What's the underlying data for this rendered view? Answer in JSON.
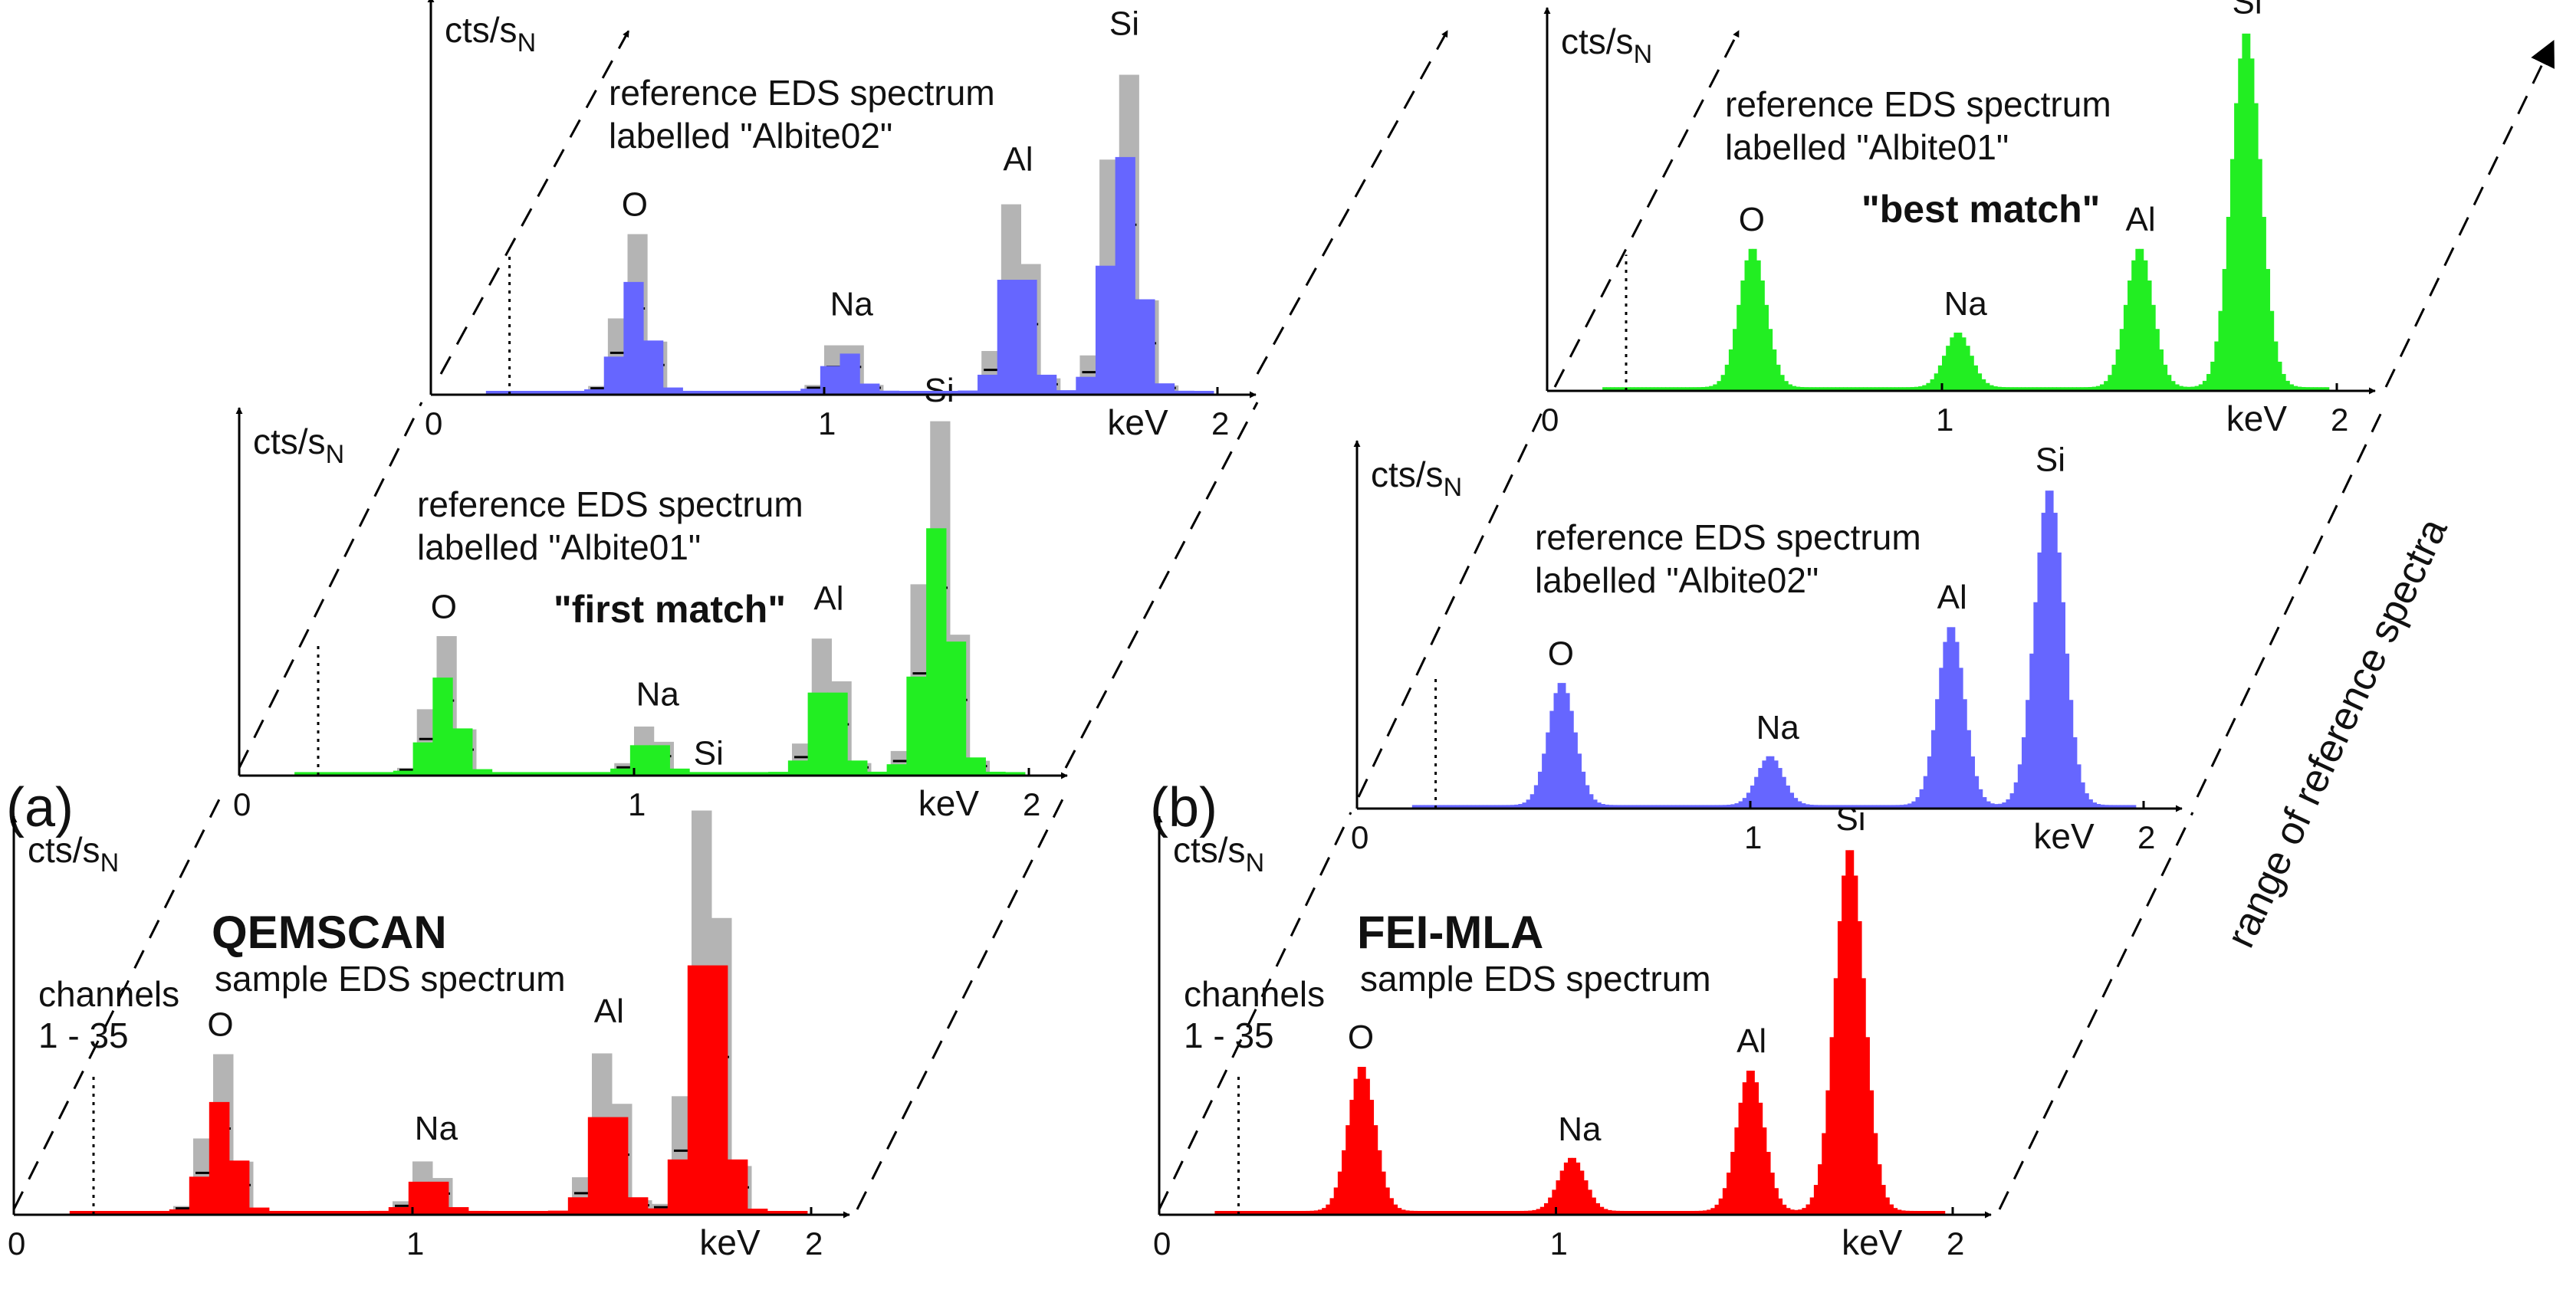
{
  "figure_labels": {
    "panel_a": "(a)",
    "panel_b": "(b)",
    "range_label": "range of reference spectra"
  },
  "colors": {
    "red": "#ff0000",
    "green": "#22ee22",
    "blue": "#6666ff",
    "grey_envelope": "#b4b4b4",
    "axis": "#000000"
  },
  "chart_data": [
    {
      "id": "a_sample",
      "type": "bar",
      "panel": "(a)",
      "role": "sample",
      "title": "QEMSCAN",
      "subtitle": "sample EDS spectrum",
      "channels_note": [
        "channels",
        "1 - 35"
      ],
      "ylabel_main": "cts/s",
      "ylabel_sub": "N",
      "xlabel": "keV",
      "x_ticks": [
        "0",
        "1",
        "2"
      ],
      "xlim": [
        0,
        2
      ],
      "color": "#ff0000",
      "binned": true,
      "bin_width": 0.05,
      "envelope": true,
      "peaks": [
        {
          "label": "O",
          "center": 0.52,
          "height": 0.35,
          "sigma": 0.036
        },
        {
          "label": "Na",
          "center": 1.04,
          "height": 0.12,
          "sigma": 0.035
        },
        {
          "label": "Al",
          "center": 1.49,
          "height": 0.38,
          "sigma": 0.036
        },
        {
          "label": "Si",
          "center": 1.74,
          "height": 0.95,
          "sigma": 0.04
        }
      ]
    },
    {
      "id": "a_ref1",
      "type": "bar",
      "panel": "(a)",
      "role": "reference",
      "title": "reference EDS spectrum",
      "subtitle": "labelled \"Albite01\"",
      "match_label": "\"first match\"",
      "ylabel_main": "cts/s",
      "ylabel_sub": "N",
      "xlabel": "keV",
      "x_ticks": [
        "0",
        "1",
        "2"
      ],
      "xlim": [
        0,
        2
      ],
      "color": "#22ee22",
      "binned": true,
      "bin_width": 0.05,
      "envelope": true,
      "peaks": [
        {
          "label": "O",
          "center": 0.52,
          "height": 0.33,
          "sigma": 0.036
        },
        {
          "label": "Na",
          "center": 1.04,
          "height": 0.12,
          "sigma": 0.035
        },
        {
          "label": "Al",
          "center": 1.49,
          "height": 0.35,
          "sigma": 0.036
        },
        {
          "label": "Si",
          "center": 1.77,
          "height": 0.85,
          "sigma": 0.04
        }
      ]
    },
    {
      "id": "a_ref2",
      "type": "bar",
      "panel": "(a)",
      "role": "reference",
      "title": "reference EDS spectrum",
      "subtitle": "labelled \"Albite02\"",
      "ylabel_main": "cts/s",
      "ylabel_sub": "N",
      "xlabel": "keV",
      "x_ticks": [
        "0",
        "1",
        "2"
      ],
      "xlim": [
        0,
        2
      ],
      "color": "#6666ff",
      "binned": true,
      "bin_width": 0.05,
      "envelope": true,
      "peaks": [
        {
          "label": "O",
          "center": 0.52,
          "height": 0.35,
          "sigma": 0.036
        },
        {
          "label": "Na",
          "center": 1.05,
          "height": 0.13,
          "sigma": 0.035
        },
        {
          "label": "Al",
          "center": 1.49,
          "height": 0.45,
          "sigma": 0.036
        },
        {
          "label": "Si",
          "center": 1.76,
          "height": 0.75,
          "sigma": 0.04
        }
      ]
    },
    {
      "id": "b_sample",
      "type": "bar",
      "panel": "(b)",
      "role": "sample",
      "title": "FEI-MLA",
      "subtitle": "sample EDS spectrum",
      "channels_note": [
        "channels",
        "1 - 35"
      ],
      "ylabel_main": "cts/s",
      "ylabel_sub": "N",
      "xlabel": "keV",
      "x_ticks": [
        "0",
        "1",
        "2"
      ],
      "xlim": [
        0,
        2
      ],
      "color": "#ff0000",
      "binned": false,
      "bin_width": 0.01,
      "envelope": false,
      "peaks": [
        {
          "label": "O",
          "center": 0.51,
          "height": 0.38,
          "sigma": 0.034
        },
        {
          "label": "Na",
          "center": 1.04,
          "height": 0.14,
          "sigma": 0.033
        },
        {
          "label": "Al",
          "center": 1.49,
          "height": 0.37,
          "sigma": 0.034
        },
        {
          "label": "Si",
          "center": 1.74,
          "height": 0.95,
          "sigma": 0.037
        }
      ]
    },
    {
      "id": "b_ref2",
      "type": "bar",
      "panel": "(b)",
      "role": "reference",
      "title": "reference EDS spectrum",
      "subtitle": "labelled \"Albite02\"",
      "ylabel_main": "cts/s",
      "ylabel_sub": "N",
      "xlabel": "keV",
      "x_ticks": [
        "0",
        "1",
        "2"
      ],
      "xlim": [
        0,
        2
      ],
      "color": "#6666ff",
      "binned": false,
      "bin_width": 0.01,
      "envelope": false,
      "peaks": [
        {
          "label": "O",
          "center": 0.52,
          "height": 0.35,
          "sigma": 0.034
        },
        {
          "label": "Na",
          "center": 1.05,
          "height": 0.14,
          "sigma": 0.033
        },
        {
          "label": "Al",
          "center": 1.51,
          "height": 0.51,
          "sigma": 0.034
        },
        {
          "label": "Si",
          "center": 1.76,
          "height": 0.9,
          "sigma": 0.037
        }
      ]
    },
    {
      "id": "b_ref1",
      "type": "bar",
      "panel": "(b)",
      "role": "reference",
      "title": "reference EDS spectrum",
      "subtitle": "labelled \"Albite01\"",
      "match_label": "\"best match\"",
      "ylabel_main": "cts/s",
      "ylabel_sub": "N",
      "xlabel": "keV",
      "x_ticks": [
        "0",
        "1",
        "2"
      ],
      "xlim": [
        0,
        2
      ],
      "color": "#22ee22",
      "binned": false,
      "bin_width": 0.01,
      "envelope": false,
      "peaks": [
        {
          "label": "O",
          "center": 0.52,
          "height": 0.38,
          "sigma": 0.034
        },
        {
          "label": "Na",
          "center": 1.04,
          "height": 0.15,
          "sigma": 0.033
        },
        {
          "label": "Al",
          "center": 1.5,
          "height": 0.38,
          "sigma": 0.034
        },
        {
          "label": "Si",
          "center": 1.77,
          "height": 0.97,
          "sigma": 0.037
        }
      ]
    }
  ]
}
